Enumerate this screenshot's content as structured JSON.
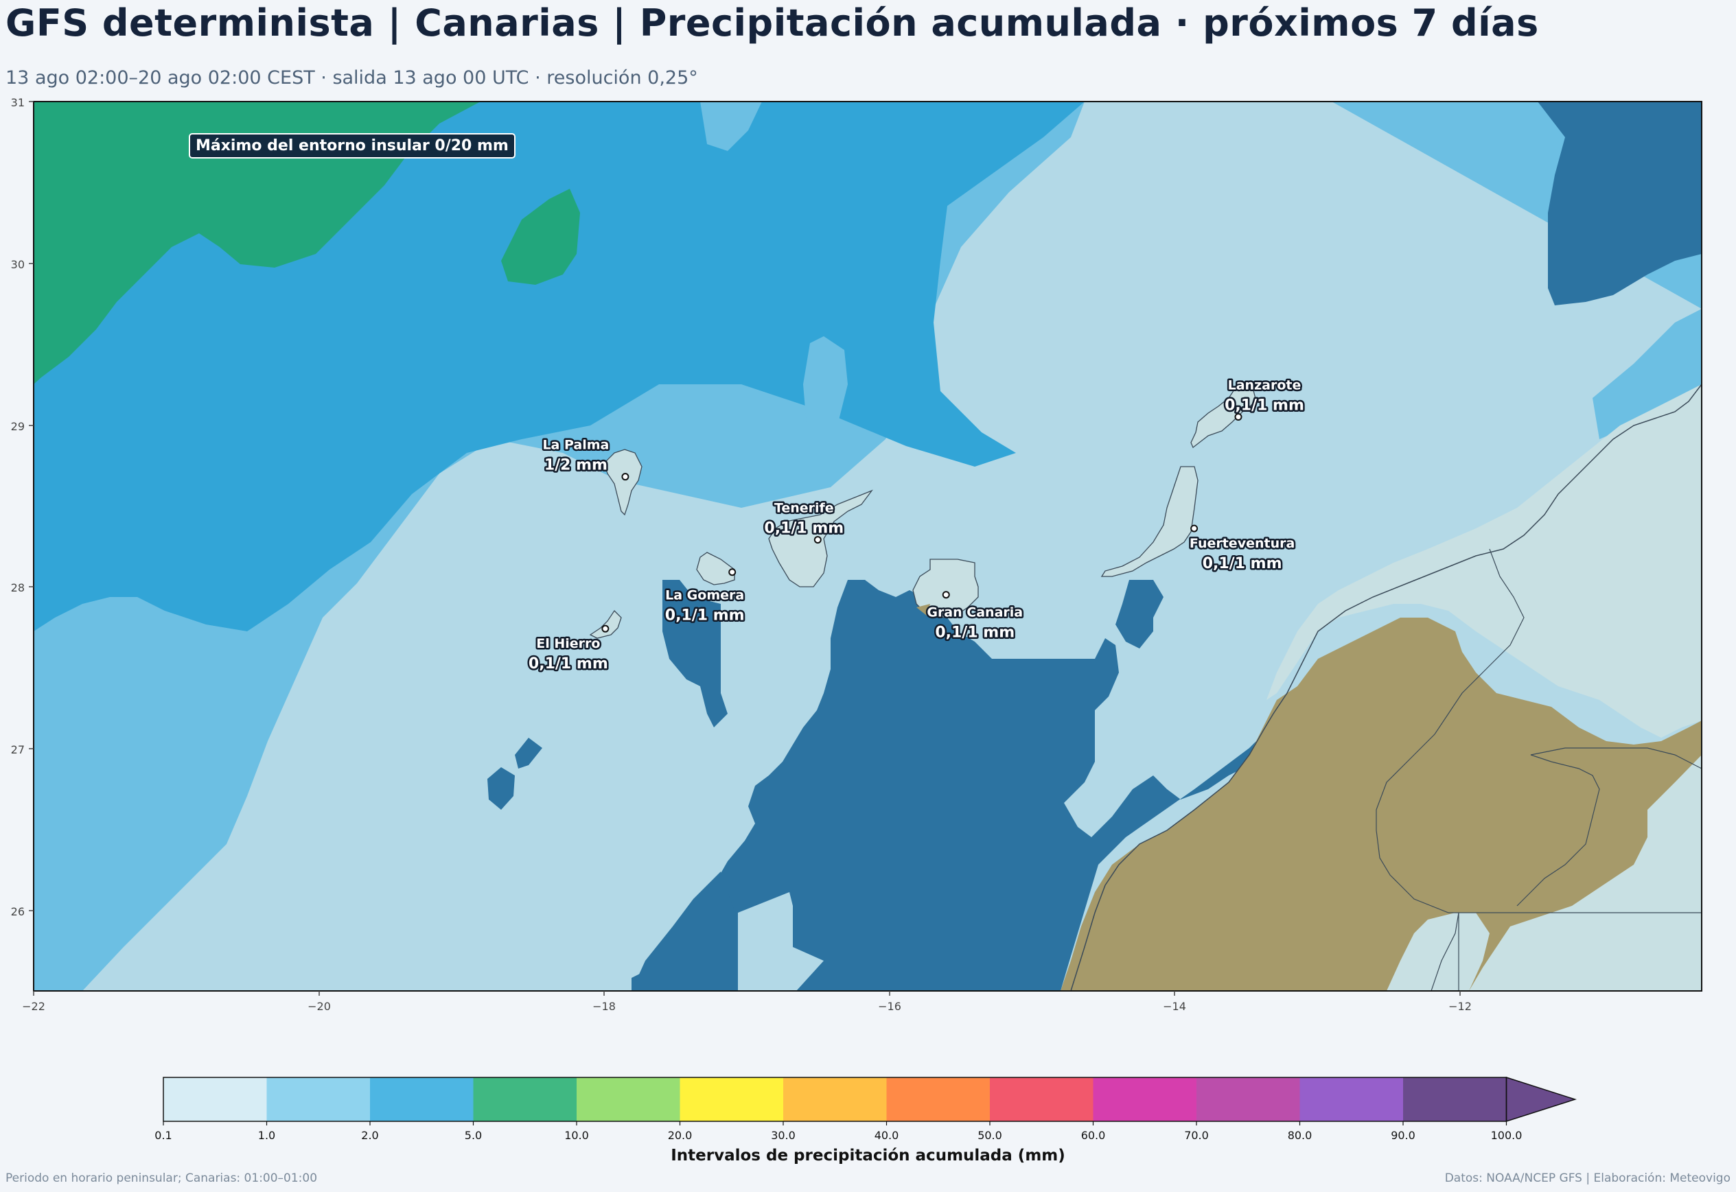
{
  "header": {
    "title": "GFS determinista | Canarias | Precipitación acumulada · próximos 7 días",
    "subtitle": "13 ago 02:00–20 ago 02:00 CEST · salida 13 ago 00 UTC · resolución 0,25°"
  },
  "map": {
    "note": "Máximo del entorno insular 0/20 mm",
    "lon_ticks": [
      "−22",
      "−20",
      "−18",
      "−16",
      "−14",
      "−12"
    ],
    "lat_ticks": [
      "31",
      "30",
      "29",
      "28",
      "27",
      "26"
    ],
    "extent": {
      "lon": [
        -22,
        -10.3
      ],
      "lat": [
        25.5,
        31
      ]
    },
    "islands": [
      {
        "name": "La Palma",
        "value": "1/2 mm",
        "lon": -17.85,
        "lat": 28.68
      },
      {
        "name": "Tenerife",
        "value": "0,1/1 mm",
        "lon": -16.5,
        "lat": 28.29
      },
      {
        "name": "La Gomera",
        "value": "0,1/1 mm",
        "lon": -17.1,
        "lat": 28.09
      },
      {
        "name": "El Hierro",
        "value": "0,1/1 mm",
        "lon": -17.99,
        "lat": 27.74
      },
      {
        "name": "Gran Canaria",
        "value": "0,1/1 mm",
        "lon": -15.6,
        "lat": 27.95
      },
      {
        "name": "Fuerteventura",
        "value": "0,1/1 mm",
        "lon": -13.86,
        "lat": 28.36
      },
      {
        "name": "Lanzarote",
        "value": "0,1/1 mm",
        "lon": -13.55,
        "lat": 29.05
      }
    ],
    "colors": {
      "ocean_masked": "#2c73a1",
      "land": "#c8e0e3",
      "africa_land": "#a69a6a",
      "band_0_1": "#b3d9e7",
      "band_1_2": "#6cbfe3",
      "band_2_5": "#32a5d7",
      "band_5_10": "#22a67c"
    }
  },
  "colorbar": {
    "label": "Intervalos de precipitación acumulada (mm)",
    "ticks": [
      "0.1",
      "1.0",
      "2.0",
      "5.0",
      "10.0",
      "20.0",
      "30.0",
      "40.0",
      "50.0",
      "60.0",
      "70.0",
      "80.0",
      "90.0",
      "100.0"
    ],
    "colors": [
      "#d7edf5",
      "#8fd3ee",
      "#4db6e3",
      "#40b882",
      "#98de73",
      "#fff23c",
      "#ffc045",
      "#ff8a47",
      "#f2586c",
      "#d63ead",
      "#bb4eab",
      "#965fcb",
      "#6a4b8c"
    ],
    "extend_color": "#6a4b8c"
  },
  "footer": {
    "left": "Periodo en horario peninsular; Canarias: 01:00–01:00",
    "right": "Datos: NOAA/NCEP GFS | Elaboración: Meteovigo"
  }
}
